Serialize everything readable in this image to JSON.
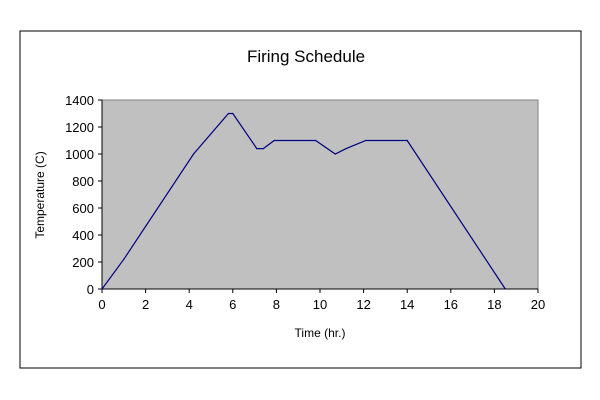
{
  "chart_data": {
    "type": "line",
    "title": "Firing Schedule",
    "xlabel": "Time (hr.)",
    "ylabel": "Temperature (C)",
    "xlim": [
      0,
      20
    ],
    "ylim": [
      0,
      1400
    ],
    "x_ticks": [
      0,
      2,
      4,
      6,
      8,
      10,
      12,
      14,
      16,
      18,
      20
    ],
    "y_ticks": [
      0,
      200,
      400,
      600,
      800,
      1000,
      1200,
      1400
    ],
    "grid": false,
    "legend": "none",
    "series": [
      {
        "color": "#000080",
        "points": [
          {
            "x": 0,
            "y": 0
          },
          {
            "x": 1,
            "y": 220
          },
          {
            "x": 4.2,
            "y": 1000
          },
          {
            "x": 5.8,
            "y": 1300
          },
          {
            "x": 6,
            "y": 1300
          },
          {
            "x": 7.1,
            "y": 1040
          },
          {
            "x": 7.4,
            "y": 1040
          },
          {
            "x": 7.9,
            "y": 1100
          },
          {
            "x": 9.8,
            "y": 1100
          },
          {
            "x": 10.7,
            "y": 1000
          },
          {
            "x": 11.2,
            "y": 1040
          },
          {
            "x": 12.1,
            "y": 1100
          },
          {
            "x": 14,
            "y": 1100
          },
          {
            "x": 18.5,
            "y": 0
          }
        ]
      }
    ],
    "colors": {
      "plot_background": "#c0c0c0",
      "line": "#000080"
    }
  }
}
